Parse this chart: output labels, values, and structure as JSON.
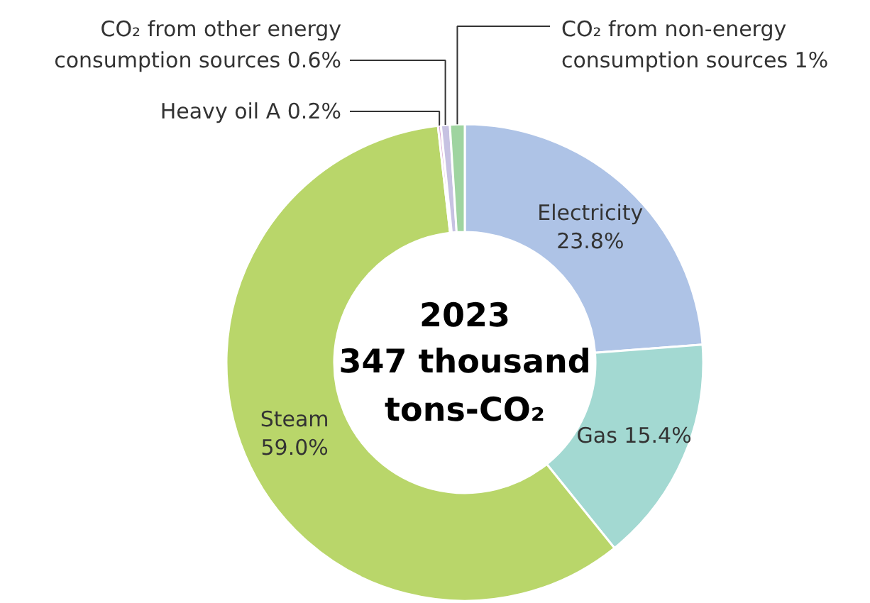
{
  "chart_data": {
    "type": "donut",
    "title": "2023\n347 thousand\ntons-CO₂",
    "categories": [
      "Electricity",
      "Gas",
      "Steam",
      "Heavy oil A",
      "CO₂ from other energy consumption sources",
      "CO₂ from non-energy consumption sources"
    ],
    "values": [
      23.8,
      15.4,
      59.0,
      0.2,
      0.6,
      1
    ],
    "value_labels": [
      "23.8%",
      "15.4%",
      "59.0%",
      "0.2%",
      "0.6%",
      "1%"
    ],
    "colors": [
      "#aec3e6",
      "#a3d9d2",
      "#b9d66a",
      "#d9a3d0",
      "#c7c2e2",
      "#9fd4a0"
    ]
  }
}
